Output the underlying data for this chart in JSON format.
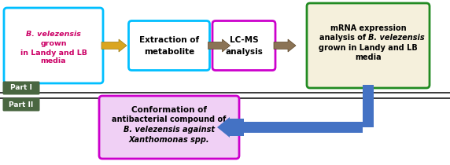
{
  "box1_label_italic": "B. velezensis",
  "box1_label_rest": "grown\nin Landy and LB\nmedia",
  "box2_text": "Extraction of\nmetabolite",
  "box3_text": "LC-MS\nanalysis",
  "box4_line1": "mRNA expression",
  "box4_line2": "analysis of ",
  "box4_line2_italic": "B. velezensis",
  "box4_line3": "grown in Landy and LB",
  "box4_line4": "media",
  "box5_line1": "Conformation of",
  "box5_line2": "antibacterial compound of",
  "box5_line3_italic": "B. velezensis",
  "box5_line3_rest": " against",
  "box5_line4_italic": "Xanthomonas",
  "box5_line4_rest": " spp.",
  "part1_text": "Part I",
  "part2_text": "Part II",
  "box1_edgecolor": "#00BFFF",
  "box2_edgecolor": "#00BFFF",
  "box3_edgecolor": "#CC00CC",
  "box4_edgecolor": "#228B22",
  "box5_edgecolor": "#CC00CC",
  "box1_facecolor": "#FFFFFF",
  "box2_facecolor": "#FFFFFF",
  "box3_facecolor": "#FFFFFF",
  "box4_facecolor": "#F5F0DC",
  "box5_facecolor": "#F0D0F5",
  "box1_textcolor": "#CC0066",
  "box2_textcolor": "#000000",
  "box3_textcolor": "#000000",
  "box4_textcolor": "#000000",
  "box5_textcolor": "#000000",
  "part_label_facecolor": "#4A6741",
  "part_label_textcolor": "#FFFFFF",
  "arrow12_color": "#DAA520",
  "arrow23_color": "#8B7355",
  "arrow34_color": "#8B7355",
  "blue_arrow_color": "#4472C4",
  "divider_color": "#1A1A1A",
  "bg_color": "#FFFFFF"
}
